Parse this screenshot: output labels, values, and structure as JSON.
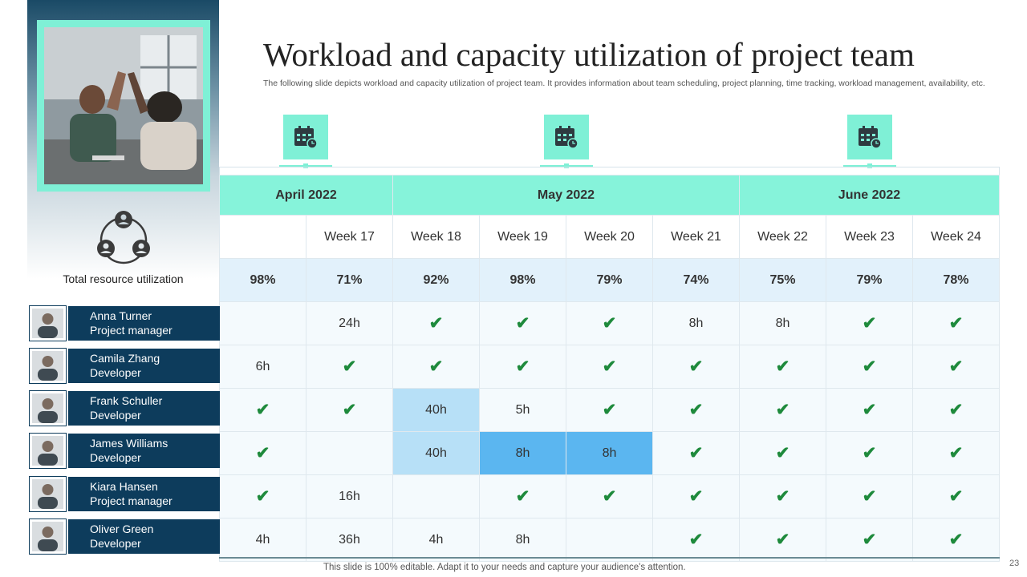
{
  "title": "Workload and capacity utilization of project team",
  "subtitle": "The following slide depicts workload and capacity utilization of project team. It provides information about team scheduling, project planning, time tracking, workload management, availability, etc.",
  "left_panel": {
    "utilization_label": "Total resource utilization"
  },
  "months": [
    "April 2022",
    "May 2022",
    "June 2022"
  ],
  "weeks": [
    "",
    "Week 17",
    "Week 18",
    "Week 19",
    "Week 20",
    "Week 21",
    "Week 22",
    "Week 23",
    "Week 24"
  ],
  "utilization": [
    "98%",
    "71%",
    "92%",
    "98%",
    "79%",
    "74%",
    "75%",
    "79%",
    "78%"
  ],
  "members": [
    {
      "name": "Anna Turner",
      "role": "Project manager",
      "cells": [
        "",
        "24h",
        "check",
        "check",
        "check",
        "8h",
        "8h",
        "check",
        "check"
      ]
    },
    {
      "name": "Camila Zhang",
      "role": "Developer",
      "cells": [
        "6h",
        "check",
        "check",
        "check",
        "check",
        "check",
        "check",
        "check",
        "check"
      ]
    },
    {
      "name": "Frank Schuller",
      "role": "Developer",
      "cells": [
        "check",
        "check",
        "40h",
        "5h",
        "check",
        "check",
        "check",
        "check",
        "check"
      ]
    },
    {
      "name": "James Williams",
      "role": "Developer",
      "cells": [
        "check",
        "",
        "40h",
        "8h",
        "8h",
        "check",
        "check",
        "check",
        "check"
      ]
    },
    {
      "name": "Kiara Hansen",
      "role": "Project manager",
      "cells": [
        "check",
        "16h",
        "",
        "check",
        "check",
        "check",
        "check",
        "check",
        "check"
      ]
    },
    {
      "name": "Oliver Green",
      "role": "Developer",
      "cells": [
        "4h",
        "36h",
        "4h",
        "8h",
        "",
        "check",
        "check",
        "check",
        "check"
      ]
    }
  ],
  "colors": {
    "accent": "#86f3da",
    "navy": "#0d3c5c",
    "check": "#1e8a3c",
    "highlight_light": "#b7e0f7",
    "highlight_dark": "#5bb6f0"
  },
  "icons": {
    "calendar": "calendar-icon",
    "team": "team-icon",
    "check": "check-icon"
  },
  "footer": "This slide is 100% editable. Adapt it to your needs and capture your audience's attention.",
  "page_number": "23"
}
